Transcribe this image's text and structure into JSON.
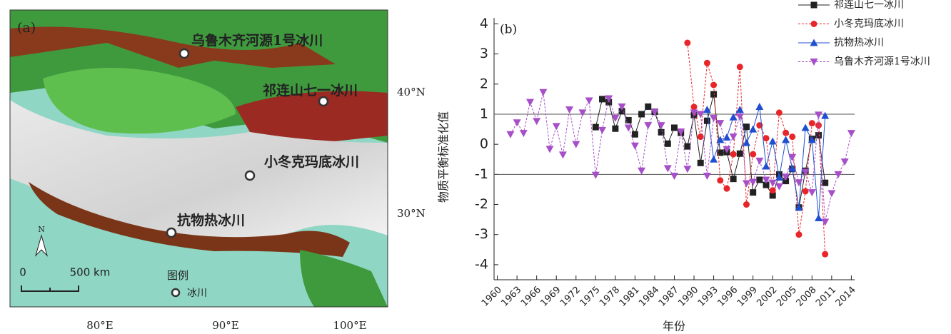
{
  "map": {
    "label": "(a)",
    "sites": [
      "乌鲁木齐河源1号冰川",
      "祁连山七一冰川",
      "小冬克玛底冰川",
      "抗物热冰川"
    ],
    "lat_labels": [
      "40°N",
      "30°N"
    ],
    "lon_labels": [
      "80°E",
      "90°E",
      "100°E"
    ],
    "scale_labels": [
      "0",
      "500 km"
    ],
    "north": "N",
    "legend_title": "图例",
    "legend_item": "冰川"
  },
  "chart_data": {
    "type": "line",
    "label": "(b)",
    "x_label": "年份",
    "y_label": "物质平衡标准化值",
    "xlim": [
      1959.5,
      2014.5
    ],
    "xticks": [
      1960,
      1963,
      1966,
      1969,
      1972,
      1975,
      1978,
      1981,
      1984,
      1987,
      1990,
      1993,
      1996,
      1999,
      2002,
      2005,
      2008,
      2011,
      2014
    ],
    "ylim": [
      -4.5,
      4.2
    ],
    "yticks": [
      4,
      3,
      2,
      1,
      0,
      -1,
      -2,
      -3,
      -4
    ],
    "reference_lines": [
      1,
      -1
    ],
    "legend": "upper right",
    "series": [
      {
        "name": "祁连山七一冰川",
        "color": "#222222",
        "marker": "square",
        "dashed": false,
        "x": [
          1975,
          1976,
          1977,
          1978,
          1979,
          1980,
          1981,
          1982,
          1983,
          1984,
          1985,
          1986,
          1987,
          1988,
          1989,
          1990,
          1991,
          1992,
          1993,
          1994,
          1995,
          1996,
          1997,
          1998,
          1999,
          2000,
          2001,
          2002,
          2003,
          2004,
          2005,
          2006,
          2007,
          2008,
          2009,
          2010
        ],
        "values": [
          0.57,
          1.5,
          1.4,
          0.52,
          1.1,
          0.8,
          0.33,
          1.0,
          1.25,
          1.08,
          0.4,
          0.02,
          0.55,
          0.38,
          -0.07,
          0.97,
          -0.62,
          0.78,
          1.66,
          -0.28,
          -0.26,
          -1.15,
          -0.31,
          0.58,
          -1.6,
          -1.18,
          -1.35,
          -1.7,
          -1.0,
          -1.22,
          -0.82,
          -2.1,
          -0.88,
          0.18,
          0.3,
          -1.28
        ]
      },
      {
        "name": "小冬克玛底冰川",
        "color": "#e8262a",
        "marker": "circle",
        "dashed": true,
        "x": [
          1989,
          1990,
          1991,
          1992,
          1993,
          1994,
          1995,
          1996,
          1997,
          1998,
          1999,
          2000,
          2001,
          2002,
          2003,
          2004,
          2005,
          2006,
          2007,
          2008,
          2009,
          2010
        ],
        "values": [
          3.37,
          1.24,
          0.25,
          2.7,
          1.97,
          -1.2,
          -1.47,
          -0.33,
          2.57,
          -2.0,
          -0.33,
          0.63,
          0.2,
          -1.53,
          1.05,
          0.38,
          0.25,
          -3.0,
          -1.56,
          0.7,
          0.63,
          -3.65
        ]
      },
      {
        "name": "抗物热冰川",
        "color": "#1f4fd0",
        "marker": "triangle-up",
        "dashed": false,
        "x": [
          1992,
          1993,
          1994,
          1995,
          1996,
          1997,
          1998,
          1999,
          2000,
          2001,
          2002,
          2003,
          2004,
          2005,
          2006,
          2007,
          2008,
          2009,
          2010
        ],
        "values": [
          1.15,
          -0.5,
          0.15,
          0.23,
          0.9,
          1.15,
          0.05,
          0.5,
          1.25,
          -0.73,
          0.1,
          -1.1,
          0.15,
          -0.8,
          -2.1,
          0.55,
          0.15,
          -2.45,
          0.95
        ]
      },
      {
        "name": "乌鲁木齐河源1号冰川",
        "color": "#a64fc8",
        "marker": "triangle-down",
        "dashed": true,
        "x": [
          1962,
          1963,
          1964,
          1965,
          1966,
          1967,
          1968,
          1969,
          1970,
          1971,
          1972,
          1973,
          1974,
          1975,
          1976,
          1977,
          1978,
          1979,
          1980,
          1981,
          1982,
          1983,
          1984,
          1985,
          1986,
          1987,
          1988,
          1989,
          1990,
          1991,
          1992,
          1993,
          1994,
          1995,
          1996,
          1997,
          1998,
          1999,
          2000,
          2001,
          2002,
          2003,
          2004,
          2005,
          2006,
          2007,
          2008,
          2009,
          2010,
          2011,
          2012,
          2013,
          2014
        ],
        "values": [
          0.33,
          0.72,
          0.37,
          1.4,
          0.77,
          1.73,
          -0.16,
          0.6,
          -0.35,
          1.15,
          0.0,
          1.05,
          1.45,
          -1.02,
          0.47,
          1.52,
          0.87,
          1.25,
          0.55,
          -0.05,
          -0.88,
          0.63,
          1.07,
          0.63,
          -0.8,
          -1.05,
          0.42,
          -0.82,
          1.05,
          1.0,
          -1.05,
          0.87,
          0.7,
          -0.17,
          0.25,
          0.92,
          -1.3,
          -1.25,
          -0.55,
          -1.18,
          -1.28,
          -1.4,
          -1.08,
          -0.43,
          -1.27,
          -0.92,
          -1.6,
          0.98,
          -2.58,
          -1.63,
          -1.0,
          -0.58,
          0.37
        ]
      }
    ]
  }
}
